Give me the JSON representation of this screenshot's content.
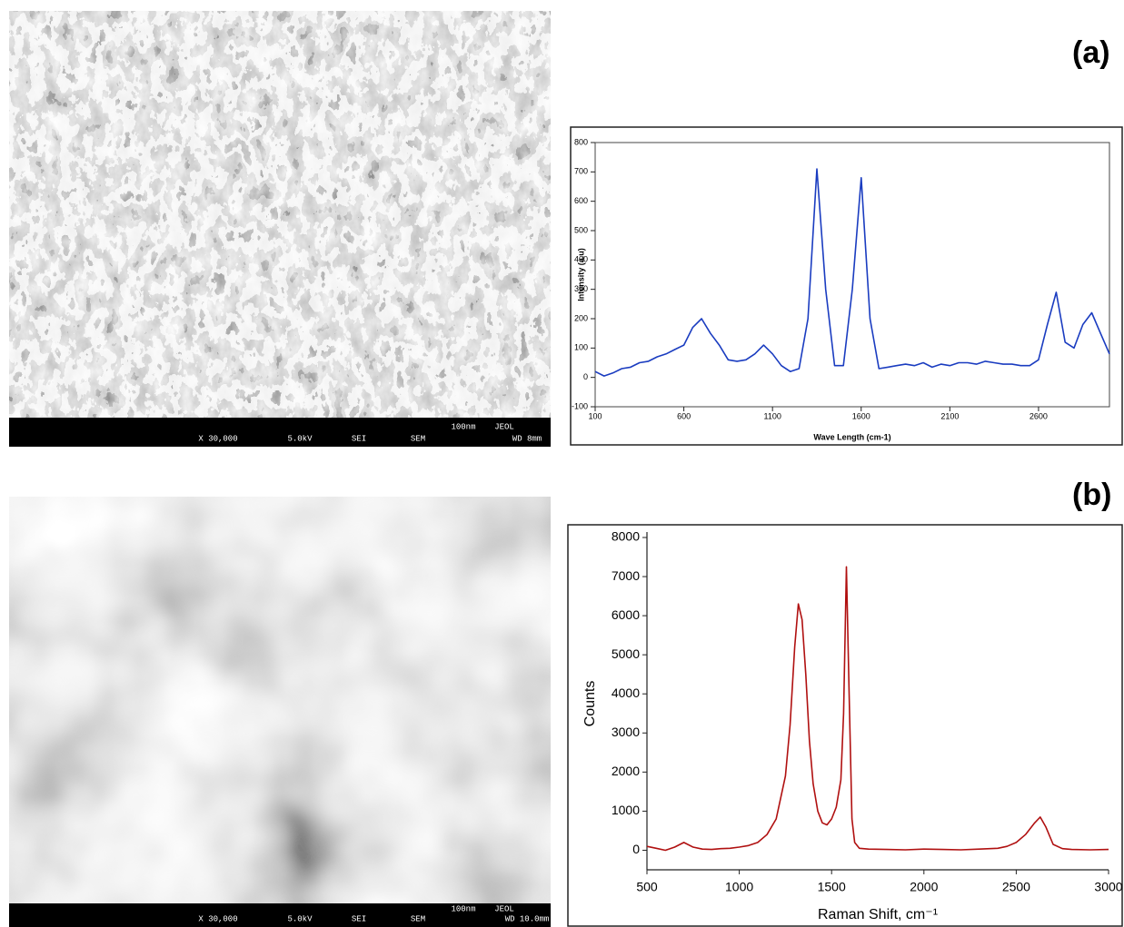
{
  "panel_labels": [
    "(a)",
    "(b)"
  ],
  "images": [
    {
      "caption": [
        "X 30,000",
        "5.0kV",
        "SEI",
        "SEM",
        "100nm",
        "JEOL",
        "WD 8mm"
      ]
    },
    {
      "caption": [
        "X 30,000",
        "5.0kV",
        "SEI",
        "SEM",
        "100nm",
        "JEOL",
        "WD 10.0mm"
      ]
    }
  ],
  "chart_data": [
    {
      "type": "line",
      "x_label": "Wave Length (cm-1)",
      "y_label": "Intensity (a.u)",
      "xlim": [
        100,
        3000
      ],
      "xticks": [
        100,
        600,
        1100,
        1600,
        2100,
        2600
      ],
      "ylim": [
        -100,
        800
      ],
      "yticks": [
        -100,
        0,
        100,
        200,
        300,
        400,
        500,
        600,
        700,
        800
      ],
      "x": [
        100,
        150,
        200,
        250,
        300,
        350,
        400,
        450,
        500,
        550,
        600,
        650,
        700,
        750,
        800,
        850,
        900,
        950,
        1000,
        1050,
        1100,
        1150,
        1200,
        1250,
        1300,
        1350,
        1400,
        1450,
        1500,
        1550,
        1600,
        1650,
        1700,
        1750,
        1800,
        1850,
        1900,
        1950,
        2000,
        2050,
        2100,
        2150,
        2200,
        2250,
        2300,
        2350,
        2400,
        2450,
        2500,
        2550,
        2600,
        2650,
        2700,
        2750,
        2800,
        2850,
        2900,
        2950,
        3000
      ],
      "series": [
        {
          "color": "#1a3cc0",
          "values": [
            20,
            5,
            15,
            30,
            35,
            50,
            55,
            70,
            80,
            95,
            110,
            170,
            200,
            150,
            110,
            60,
            55,
            60,
            80,
            110,
            80,
            40,
            20,
            30,
            200,
            710,
            300,
            40,
            40,
            300,
            680,
            200,
            30,
            35,
            40,
            45,
            40,
            50,
            35,
            45,
            40,
            50,
            50,
            45,
            55,
            50,
            45,
            45,
            40,
            40,
            60,
            180,
            290,
            120,
            100,
            180,
            220,
            150,
            80
          ]
        }
      ]
    },
    {
      "type": "line",
      "x_label": "Raman Shift, cm⁻¹",
      "y_label": "Counts",
      "xlim": [
        500,
        3000
      ],
      "xticks": [
        500,
        1000,
        1500,
        2000,
        2500,
        3000
      ],
      "ylim": [
        -500,
        8000
      ],
      "yticks": [
        0,
        1000,
        2000,
        3000,
        4000,
        5000,
        6000,
        7000,
        8000
      ],
      "x": [
        500,
        550,
        600,
        650,
        700,
        750,
        800,
        850,
        900,
        950,
        1000,
        1050,
        1100,
        1150,
        1200,
        1250,
        1275,
        1300,
        1320,
        1340,
        1360,
        1380,
        1400,
        1425,
        1450,
        1475,
        1500,
        1525,
        1550,
        1565,
        1580,
        1595,
        1610,
        1625,
        1650,
        1700,
        1800,
        1900,
        2000,
        2100,
        2200,
        2300,
        2400,
        2450,
        2500,
        2550,
        2600,
        2630,
        2660,
        2700,
        2750,
        2800,
        2900,
        3000
      ],
      "series": [
        {
          "color": "#b01010",
          "values": [
            100,
            50,
            0,
            80,
            200,
            80,
            30,
            20,
            40,
            50,
            80,
            120,
            200,
            400,
            800,
            1900,
            3200,
            5200,
            6300,
            5900,
            4500,
            2800,
            1700,
            1000,
            700,
            650,
            800,
            1100,
            1800,
            3500,
            7250,
            4000,
            800,
            200,
            50,
            30,
            20,
            10,
            30,
            20,
            10,
            30,
            50,
            100,
            200,
            400,
            700,
            850,
            600,
            150,
            40,
            20,
            10,
            20
          ]
        }
      ]
    }
  ]
}
